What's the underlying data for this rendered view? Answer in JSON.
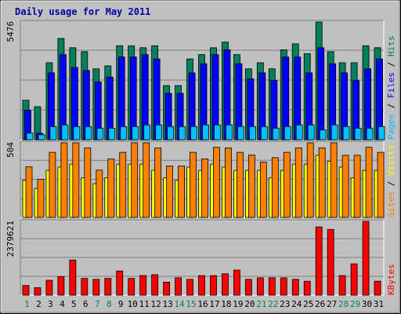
{
  "chart_data": [
    {
      "type": "bar",
      "title": "Daily usage for May 2011",
      "categories": [
        "1",
        "2",
        "3",
        "4",
        "5",
        "6",
        "7",
        "8",
        "9",
        "10",
        "11",
        "12",
        "13",
        "14",
        "15",
        "16",
        "17",
        "18",
        "19",
        "20",
        "21",
        "22",
        "23",
        "24",
        "25",
        "26",
        "27",
        "28",
        "29",
        "30",
        "31"
      ],
      "weekend_days": [
        "1",
        "7",
        "8",
        "14",
        "15",
        "21",
        "22",
        "28",
        "29"
      ],
      "ymax_label": "5476",
      "ymax": 5476,
      "series": [
        {
          "name": "Hits",
          "color": "#00805c",
          "values": [
            1838,
            1534,
            3580,
            4710,
            4278,
            4094,
            3298,
            3434,
            4370,
            4370,
            4278,
            4370,
            2518,
            2518,
            3756,
            3958,
            4278,
            4540,
            3958,
            3298,
            3580,
            3298,
            4184,
            4460,
            4000,
            5476,
            4094,
            3580,
            3580,
            4370,
            4278
          ]
        },
        {
          "name": "Files",
          "color": "#0000ff",
          "values": [
            1378,
            306,
            3110,
            3958,
            3362,
            3222,
            2690,
            2912,
            3846,
            3846,
            3958,
            3756,
            2158,
            2158,
            3110,
            3534,
            3958,
            4184,
            3534,
            2832,
            3110,
            2756,
            3846,
            3846,
            3110,
            4278,
            3534,
            3110,
            2756,
            3298,
            3756
          ]
        },
        {
          "name": "Pages",
          "color": "#00c0ff",
          "values": [
            306,
            230,
            612,
            688,
            612,
            612,
            536,
            536,
            612,
            612,
            688,
            688,
            612,
            612,
            612,
            688,
            688,
            688,
            612,
            612,
            612,
            536,
            612,
            688,
            688,
            460,
            688,
            612,
            536,
            536,
            612
          ]
        }
      ],
      "axis_label": "Pages / Files / Hits"
    },
    {
      "type": "bar",
      "ymax_label": "504",
      "ymax": 504,
      "series": [
        {
          "name": "Visits",
          "color": "#ffff00",
          "values": [
            250,
            196,
            318,
            340,
            360,
            268,
            228,
            268,
            360,
            360,
            360,
            318,
            268,
            250,
            340,
            318,
            360,
            340,
            318,
            318,
            318,
            268,
            318,
            360,
            360,
            420,
            380,
            340,
            268,
            318,
            318
          ]
        },
        {
          "name": "Sites",
          "color": "#ff8000",
          "values": [
            342,
            258,
            440,
            504,
            504,
            470,
            320,
            396,
            440,
            504,
            504,
            470,
            348,
            348,
            440,
            396,
            474,
            470,
            440,
            422,
            374,
            404,
            440,
            470,
            504,
            470,
            504,
            420,
            420,
            474,
            440
          ]
        }
      ],
      "axis_label": "Sites / Visits"
    },
    {
      "type": "bar",
      "ymax_label": "2379621",
      "ymax": 2379621,
      "series": [
        {
          "name": "KBytes",
          "color": "#ff0000",
          "values": [
            312000,
            240000,
            480000,
            600000,
            1134000,
            540000,
            510000,
            540000,
            780000,
            540000,
            630000,
            660000,
            420000,
            560000,
            510000,
            630000,
            630000,
            690000,
            810000,
            510000,
            560000,
            560000,
            560000,
            510000,
            450000,
            2200000,
            2120000,
            630000,
            1010000,
            2379621,
            450000
          ]
        }
      ],
      "axis_label": "KBytes"
    }
  ]
}
